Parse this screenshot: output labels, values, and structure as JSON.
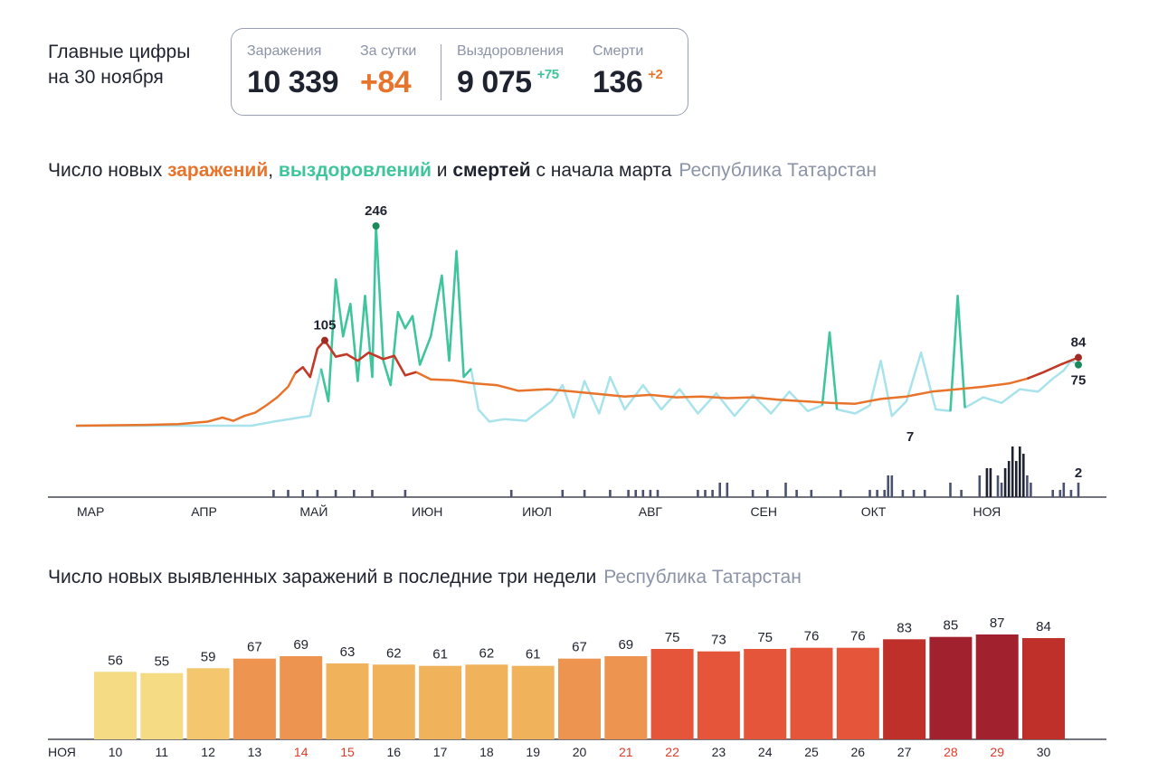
{
  "headline": {
    "line1": "Главные цифры",
    "line2": "на 30 ноября"
  },
  "stats": {
    "infections": {
      "label": "Заражения",
      "value": "10 339"
    },
    "daily": {
      "label": "За сутки",
      "value": "+84"
    },
    "recoveries": {
      "label": "Выздоровления",
      "value": "9 075",
      "delta": "+75"
    },
    "deaths": {
      "label": "Смерти",
      "value": "136",
      "delta": "+2"
    }
  },
  "chart1_title": {
    "p1": "Число новых ",
    "infections": "заражений",
    "p2": ", ",
    "recoveries": "выздоровлений",
    "p3": " и ",
    "deaths": "смертей",
    "p4": " с начала марта",
    "region": "Республика Татарстан"
  },
  "chart2_title": {
    "text": "Число новых выявленных заражений в последние три недели",
    "region": "Республика Татарстан"
  },
  "colors": {
    "infections": "#e8742c",
    "recoveries": "#3ec59b",
    "recoveries_light": "#a8e3ec",
    "deaths": "#4a5270",
    "deaths_highlight": "#1f2330",
    "weekend": "#e03a2a",
    "text": "#1f2330",
    "muted": "#8b93a7"
  },
  "chart_data": [
    {
      "type": "line",
      "x_start": "2020-03-01",
      "x_end": "2020-11-30",
      "month_ticks": [
        {
          "label": "МАР",
          "date": "2020-03-05"
        },
        {
          "label": "АПР",
          "date": "2020-04-05"
        },
        {
          "label": "МАЙ",
          "date": "2020-05-05"
        },
        {
          "label": "ИЮН",
          "date": "2020-06-05"
        },
        {
          "label": "ИЮЛ",
          "date": "2020-07-05"
        },
        {
          "label": "АВГ",
          "date": "2020-08-05"
        },
        {
          "label": "СЕН",
          "date": "2020-09-05"
        },
        {
          "label": "ОКТ",
          "date": "2020-10-05"
        },
        {
          "label": "НОЯ",
          "date": "2020-11-05"
        }
      ],
      "annotations": [
        {
          "text": "246",
          "series": "recoveries",
          "date": "2020-05-22",
          "value": 246
        },
        {
          "text": "105",
          "series": "infections",
          "date": "2020-05-08",
          "value": 105
        },
        {
          "text": "84",
          "series": "infections",
          "date": "2020-11-30",
          "value": 84
        },
        {
          "text": "75",
          "series": "recoveries",
          "date": "2020-11-30",
          "value": 75
        },
        {
          "text": "7",
          "series": "deaths",
          "date": "2020-10-15",
          "value": 7
        },
        {
          "text": "2",
          "series": "deaths",
          "date": "2020-11-30",
          "value": 2
        }
      ],
      "series": [
        {
          "key": "infections",
          "points": [
            [
              "2020-03-01",
              0
            ],
            [
              "2020-03-20",
              1
            ],
            [
              "2020-03-29",
              2
            ],
            [
              "2020-04-06",
              5
            ],
            [
              "2020-04-10",
              10
            ],
            [
              "2020-04-13",
              6
            ],
            [
              "2020-04-16",
              12
            ],
            [
              "2020-04-19",
              16
            ],
            [
              "2020-04-22",
              25
            ],
            [
              "2020-04-25",
              35
            ],
            [
              "2020-04-28",
              48
            ],
            [
              "2020-04-30",
              65
            ],
            [
              "2020-05-02",
              72
            ],
            [
              "2020-05-04",
              60
            ],
            [
              "2020-05-06",
              95
            ],
            [
              "2020-05-08",
              105
            ],
            [
              "2020-05-11",
              85
            ],
            [
              "2020-05-14",
              88
            ],
            [
              "2020-05-17",
              80
            ],
            [
              "2020-05-20",
              90
            ],
            [
              "2020-05-24",
              82
            ],
            [
              "2020-05-27",
              86
            ],
            [
              "2020-05-30",
              62
            ],
            [
              "2020-06-02",
              66
            ],
            [
              "2020-06-06",
              57
            ],
            [
              "2020-06-12",
              56
            ],
            [
              "2020-06-18",
              52
            ],
            [
              "2020-06-24",
              50
            ],
            [
              "2020-06-30",
              43
            ],
            [
              "2020-07-08",
              45
            ],
            [
              "2020-07-15",
              42
            ],
            [
              "2020-07-22",
              39
            ],
            [
              "2020-07-29",
              36
            ],
            [
              "2020-08-05",
              38
            ],
            [
              "2020-08-12",
              35
            ],
            [
              "2020-08-19",
              36
            ],
            [
              "2020-08-26",
              34
            ],
            [
              "2020-09-02",
              35
            ],
            [
              "2020-09-09",
              32
            ],
            [
              "2020-09-16",
              30
            ],
            [
              "2020-09-23",
              28
            ],
            [
              "2020-09-30",
              27
            ],
            [
              "2020-10-07",
              33
            ],
            [
              "2020-10-14",
              36
            ],
            [
              "2020-10-21",
              42
            ],
            [
              "2020-10-28",
              45
            ],
            [
              "2020-11-04",
              48
            ],
            [
              "2020-11-11",
              52
            ],
            [
              "2020-11-16",
              58
            ],
            [
              "2020-11-20",
              65
            ],
            [
              "2020-11-25",
              75
            ],
            [
              "2020-11-30",
              84
            ]
          ]
        },
        {
          "key": "recoveries",
          "points": [
            [
              "2020-03-01",
              0
            ],
            [
              "2020-04-18",
              0
            ],
            [
              "2020-04-24",
              5
            ],
            [
              "2020-05-01",
              10
            ],
            [
              "2020-05-04",
              12
            ],
            [
              "2020-05-07",
              70
            ],
            [
              "2020-05-09",
              30
            ],
            [
              "2020-05-11",
              180
            ],
            [
              "2020-05-13",
              110
            ],
            [
              "2020-05-15",
              150
            ],
            [
              "2020-05-17",
              55
            ],
            [
              "2020-05-19",
              160
            ],
            [
              "2020-05-21",
              60
            ],
            [
              "2020-05-22",
              246
            ],
            [
              "2020-05-24",
              80
            ],
            [
              "2020-05-26",
              50
            ],
            [
              "2020-05-28",
              140
            ],
            [
              "2020-05-30",
              120
            ],
            [
              "2020-06-01",
              135
            ],
            [
              "2020-06-03",
              75
            ],
            [
              "2020-06-06",
              110
            ],
            [
              "2020-06-09",
              185
            ],
            [
              "2020-06-11",
              80
            ],
            [
              "2020-06-13",
              215
            ],
            [
              "2020-06-15",
              60
            ],
            [
              "2020-06-17",
              70
            ],
            [
              "2020-06-19",
              20
            ],
            [
              "2020-06-22",
              5
            ],
            [
              "2020-06-26",
              8
            ],
            [
              "2020-07-02",
              6
            ],
            [
              "2020-07-09",
              30
            ],
            [
              "2020-07-12",
              50
            ],
            [
              "2020-07-15",
              10
            ],
            [
              "2020-07-18",
              55
            ],
            [
              "2020-07-22",
              15
            ],
            [
              "2020-07-25",
              60
            ],
            [
              "2020-07-29",
              20
            ],
            [
              "2020-08-03",
              50
            ],
            [
              "2020-08-08",
              20
            ],
            [
              "2020-08-13",
              45
            ],
            [
              "2020-08-18",
              15
            ],
            [
              "2020-08-23",
              40
            ],
            [
              "2020-08-28",
              12
            ],
            [
              "2020-09-02",
              38
            ],
            [
              "2020-09-07",
              15
            ],
            [
              "2020-09-12",
              42
            ],
            [
              "2020-09-17",
              18
            ],
            [
              "2020-09-21",
              25
            ],
            [
              "2020-09-23",
              115
            ],
            [
              "2020-09-25",
              20
            ],
            [
              "2020-09-30",
              15
            ],
            [
              "2020-10-04",
              25
            ],
            [
              "2020-10-07",
              80
            ],
            [
              "2020-10-10",
              12
            ],
            [
              "2020-10-14",
              30
            ],
            [
              "2020-10-18",
              90
            ],
            [
              "2020-10-22",
              20
            ],
            [
              "2020-10-26",
              18
            ],
            [
              "2020-10-28",
              160
            ],
            [
              "2020-10-30",
              22
            ],
            [
              "2020-11-04",
              35
            ],
            [
              "2020-11-09",
              28
            ],
            [
              "2020-11-14",
              45
            ],
            [
              "2020-11-19",
              42
            ],
            [
              "2020-11-23",
              58
            ],
            [
              "2020-11-26",
              68
            ],
            [
              "2020-11-28",
              80
            ],
            [
              "2020-11-30",
              75
            ]
          ]
        },
        {
          "key": "deaths",
          "bars": [
            [
              "2020-04-24",
              1
            ],
            [
              "2020-04-28",
              1
            ],
            [
              "2020-05-02",
              1
            ],
            [
              "2020-05-06",
              1
            ],
            [
              "2020-05-11",
              1
            ],
            [
              "2020-05-16",
              1
            ],
            [
              "2020-05-21",
              1
            ],
            [
              "2020-05-30",
              1
            ],
            [
              "2020-06-28",
              1
            ],
            [
              "2020-07-12",
              1
            ],
            [
              "2020-07-18",
              1
            ],
            [
              "2020-07-25",
              1
            ],
            [
              "2020-07-30",
              1
            ],
            [
              "2020-08-01",
              1
            ],
            [
              "2020-08-03",
              1
            ],
            [
              "2020-08-05",
              1
            ],
            [
              "2020-08-07",
              1
            ],
            [
              "2020-08-18",
              1
            ],
            [
              "2020-08-20",
              1
            ],
            [
              "2020-08-22",
              1
            ],
            [
              "2020-08-24",
              2
            ],
            [
              "2020-08-26",
              2
            ],
            [
              "2020-09-02",
              1
            ],
            [
              "2020-09-06",
              1
            ],
            [
              "2020-09-11",
              2
            ],
            [
              "2020-09-14",
              1
            ],
            [
              "2020-09-18",
              1
            ],
            [
              "2020-09-26",
              1
            ],
            [
              "2020-10-04",
              1
            ],
            [
              "2020-10-06",
              1
            ],
            [
              "2020-10-08",
              1
            ],
            [
              "2020-10-09",
              3
            ],
            [
              "2020-10-10",
              3
            ],
            [
              "2020-10-13",
              1
            ],
            [
              "2020-10-16",
              1
            ],
            [
              "2020-10-19",
              1
            ],
            [
              "2020-10-26",
              2
            ],
            [
              "2020-10-29",
              1
            ],
            [
              "2020-11-03",
              3
            ],
            [
              "2020-11-05",
              4
            ],
            [
              "2020-11-06",
              4
            ],
            [
              "2020-11-08",
              3
            ],
            [
              "2020-11-09",
              2
            ],
            [
              "2020-11-10",
              4
            ],
            [
              "2020-11-11",
              5
            ],
            [
              "2020-11-12",
              7
            ],
            [
              "2020-11-13",
              5
            ],
            [
              "2020-11-14",
              7
            ],
            [
              "2020-11-15",
              6
            ],
            [
              "2020-11-16",
              3
            ],
            [
              "2020-11-17",
              2
            ],
            [
              "2020-11-23",
              1
            ],
            [
              "2020-11-25",
              1
            ],
            [
              "2020-11-26",
              2
            ],
            [
              "2020-11-28",
              1
            ],
            [
              "2020-11-30",
              2
            ]
          ]
        }
      ]
    },
    {
      "type": "bar",
      "month_label": "НОЯ",
      "categories": [
        "10",
        "11",
        "12",
        "13",
        "14",
        "15",
        "16",
        "17",
        "18",
        "19",
        "20",
        "21",
        "22",
        "23",
        "24",
        "25",
        "26",
        "27",
        "28",
        "29",
        "30"
      ],
      "values": [
        56,
        55,
        59,
        67,
        69,
        63,
        62,
        61,
        62,
        61,
        67,
        69,
        75,
        73,
        75,
        76,
        76,
        83,
        85,
        87,
        84
      ],
      "weekend": [
        false,
        false,
        false,
        false,
        true,
        true,
        false,
        false,
        false,
        false,
        false,
        true,
        true,
        false,
        false,
        false,
        false,
        false,
        true,
        true,
        false
      ],
      "ylim": [
        0,
        90
      ]
    }
  ]
}
